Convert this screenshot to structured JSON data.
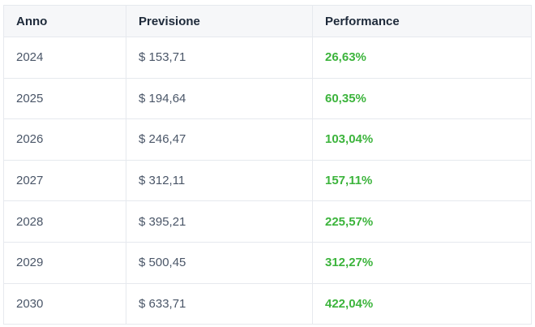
{
  "table": {
    "headers": [
      "Anno",
      "Previsione",
      "Performance"
    ],
    "rows": [
      {
        "year": "2024",
        "forecast": "$ 153,71",
        "performance": "26,63%"
      },
      {
        "year": "2025",
        "forecast": "$ 194,64",
        "performance": "60,35%"
      },
      {
        "year": "2026",
        "forecast": "$ 246,47",
        "performance": "103,04%"
      },
      {
        "year": "2027",
        "forecast": "$ 312,11",
        "performance": "157,11%"
      },
      {
        "year": "2028",
        "forecast": "$ 395,21",
        "performance": "225,57%"
      },
      {
        "year": "2029",
        "forecast": "$ 500,45",
        "performance": "312,27%"
      },
      {
        "year": "2030",
        "forecast": "$ 633,71",
        "performance": "422,04%"
      }
    ]
  },
  "colors": {
    "header_bg": "#f6f7f9",
    "header_text": "#1e2a3a",
    "cell_text": "#4a5668",
    "performance_positive": "#3cb43c",
    "border": "#e6e9ee"
  }
}
